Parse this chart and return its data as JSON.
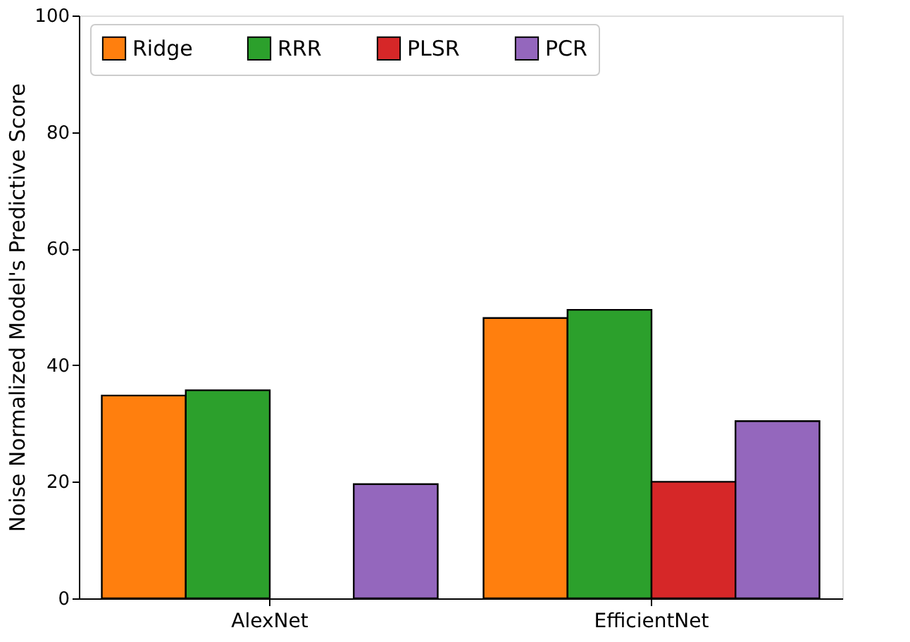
{
  "chart_data": {
    "type": "bar",
    "ylabel": "Noise Normalized Model's Predictive Score",
    "categories": [
      "AlexNet",
      "EfficientNet"
    ],
    "series": [
      {
        "name": "Ridge",
        "color": "#ff7f0e",
        "values": [
          34.8,
          48.1
        ]
      },
      {
        "name": "RRR",
        "color": "#2ca02c",
        "values": [
          35.7,
          49.5
        ]
      },
      {
        "name": "PLSR",
        "color": "#d62728",
        "values": [
          null,
          20.0
        ]
      },
      {
        "name": "PCR",
        "color": "#9467bd",
        "values": [
          19.6,
          30.4
        ]
      }
    ],
    "ylim": [
      0,
      100
    ],
    "yticks": [
      0,
      20,
      40,
      60,
      80,
      100
    ],
    "grid": false,
    "legend": "top"
  }
}
